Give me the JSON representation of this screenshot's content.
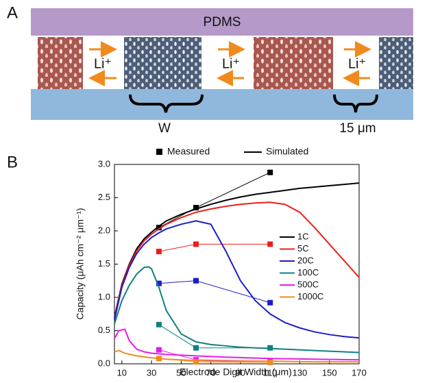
{
  "panel_a": {
    "label": "A",
    "top_layer": "PDMS",
    "ion_labels": [
      "Li⁺",
      "Li⁺",
      "Li⁺"
    ],
    "width_label": "W",
    "gap_label": "15 μm"
  },
  "chart_data": {
    "type": "line",
    "panel_label": "B",
    "x_label": "Electrode Digit Width (μm)",
    "y_label": "Capacity (μAh cm⁻² μm⁻¹)",
    "style_legend": [
      "Measured",
      "Simulated"
    ],
    "xlim": [
      5,
      170
    ],
    "ylim": [
      0,
      3
    ],
    "xticks": [
      10,
      30,
      50,
      70,
      90,
      110,
      130,
      150,
      170
    ],
    "yticks": [
      {
        "value": 0,
        "label": "0.0"
      },
      0.5,
      {
        "value": 1,
        "label": "1.0"
      },
      1.5,
      {
        "value": 2,
        "label": "2.0"
      },
      2.5,
      {
        "value": 3,
        "label": "3.0"
      }
    ],
    "measured_x": [
      35,
      60,
      110
    ],
    "series": [
      {
        "name": "1C",
        "color": "#000000",
        "measured": [
          2.05,
          2.35,
          2.88
        ],
        "sim_x": [
          5,
          10,
          15,
          20,
          25,
          30,
          35,
          40,
          50,
          60,
          70,
          80,
          90,
          100,
          110,
          120,
          130,
          140,
          150,
          160,
          170
        ],
        "sim_y": [
          0.7,
          1.2,
          1.5,
          1.73,
          1.88,
          1.98,
          2.07,
          2.15,
          2.25,
          2.33,
          2.4,
          2.46,
          2.51,
          2.55,
          2.58,
          2.61,
          2.64,
          2.66,
          2.68,
          2.7,
          2.72
        ]
      },
      {
        "name": "5C",
        "color": "#e8201c",
        "measured": [
          1.69,
          1.8,
          1.8
        ],
        "sim_x": [
          5,
          10,
          15,
          20,
          25,
          30,
          35,
          40,
          50,
          60,
          70,
          80,
          90,
          100,
          110,
          120,
          130,
          140,
          150,
          160,
          170
        ],
        "sim_y": [
          0.68,
          1.18,
          1.48,
          1.7,
          1.85,
          1.95,
          2.03,
          2.1,
          2.2,
          2.28,
          2.33,
          2.37,
          2.4,
          2.42,
          2.43,
          2.4,
          2.28,
          2.05,
          1.8,
          1.55,
          1.3
        ]
      },
      {
        "name": "20C",
        "color": "#1c1ccc",
        "measured": [
          1.21,
          1.25,
          0.92
        ],
        "sim_x": [
          5,
          10,
          15,
          20,
          25,
          30,
          35,
          40,
          50,
          60,
          70,
          80,
          90,
          100,
          110,
          120,
          130,
          140,
          150,
          160,
          170
        ],
        "sim_y": [
          0.66,
          1.15,
          1.45,
          1.66,
          1.8,
          1.9,
          1.97,
          2.03,
          2.1,
          2.15,
          2.1,
          1.7,
          1.25,
          0.95,
          0.75,
          0.62,
          0.54,
          0.48,
          0.44,
          0.41,
          0.39
        ]
      },
      {
        "name": "100C",
        "color": "#0f8080",
        "measured": [
          0.59,
          0.24,
          0.24
        ],
        "sim_x": [
          5,
          10,
          15,
          20,
          25,
          28,
          30,
          35,
          40,
          50,
          60,
          70,
          80,
          90,
          100,
          110,
          120,
          130,
          140,
          150,
          160,
          170
        ],
        "sim_y": [
          0.6,
          0.95,
          1.18,
          1.35,
          1.45,
          1.46,
          1.43,
          1.15,
          0.8,
          0.45,
          0.33,
          0.29,
          0.27,
          0.25,
          0.24,
          0.23,
          0.22,
          0.21,
          0.2,
          0.19,
          0.18,
          0.17
        ]
      },
      {
        "name": "500C",
        "color": "#e81ce8",
        "measured": [
          0.21,
          0.06,
          0.04
        ],
        "sim_x": [
          5,
          8,
          12,
          15,
          20,
          25,
          30,
          40,
          60,
          80,
          110,
          140,
          170
        ],
        "sim_y": [
          0.38,
          0.5,
          0.52,
          0.35,
          0.22,
          0.18,
          0.16,
          0.14,
          0.12,
          0.1,
          0.08,
          0.07,
          0.06
        ]
      },
      {
        "name": "1000C",
        "color": "#f08a1c",
        "measured": [
          0.08,
          0.03,
          0.02
        ],
        "sim_x": [
          5,
          8,
          12,
          20,
          30,
          40,
          60,
          80,
          110,
          140,
          170
        ],
        "sim_y": [
          0.18,
          0.2,
          0.16,
          0.12,
          0.09,
          0.07,
          0.05,
          0.04,
          0.04,
          0.03,
          0.03
        ]
      }
    ]
  }
}
